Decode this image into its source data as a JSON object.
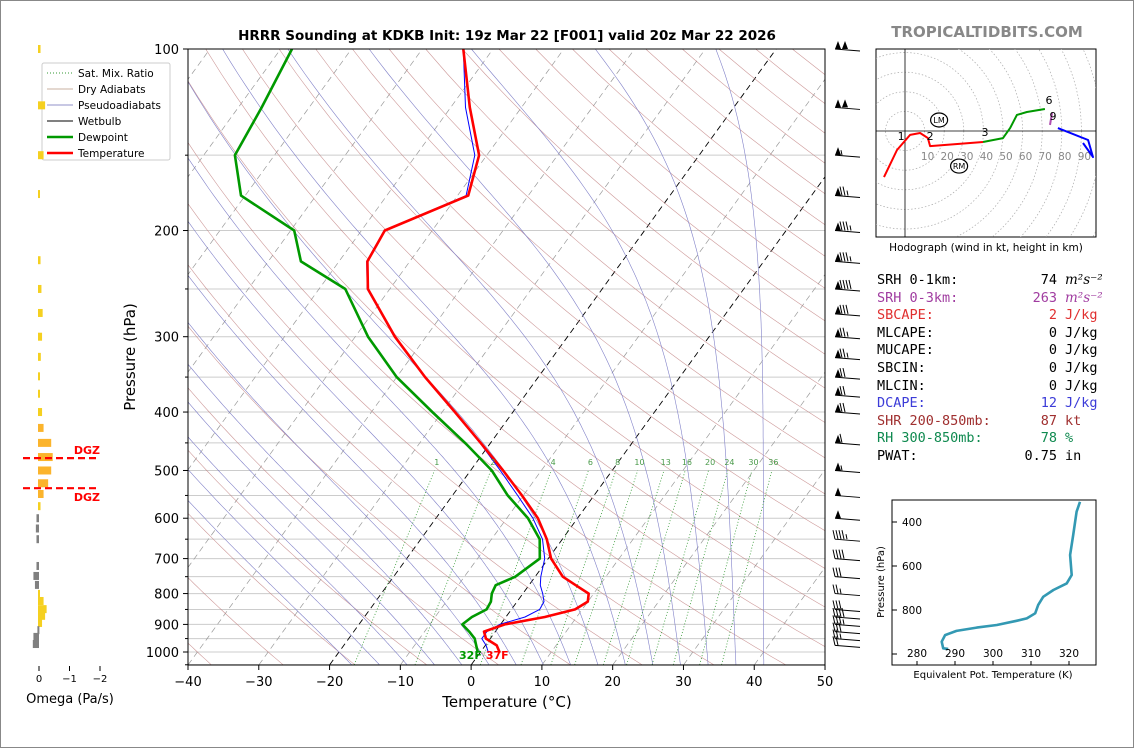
{
  "watermark": "TROPICALTIDBITS.COM",
  "colors": {
    "temperature": "#ff0000",
    "dewpoint": "#009900",
    "wetbulb": "#0000ff",
    "dry_adiabat": "#c08080",
    "pseudoadiabat": "#8080c8",
    "mixing_ratio": "#339933",
    "theta_e": "#3399b3",
    "omega_up": "#fbb42c",
    "omega_down": "#808080",
    "dgz": "#ff0000"
  },
  "stats": [
    {
      "label": "SRH 0-1km:",
      "value": "74",
      "unit": "m²s⁻²",
      "color": "#000000"
    },
    {
      "label": "SRH 0-3km:",
      "value": "263",
      "unit": "m²s⁻²",
      "color": "#a03ca0"
    },
    {
      "label": "SBCAPE:",
      "value": "2",
      "unit": "J/kg",
      "color": "#e03030"
    },
    {
      "label": "MLCAPE:",
      "value": "0",
      "unit": "J/kg",
      "color": "#000000"
    },
    {
      "label": "MUCAPE:",
      "value": "0",
      "unit": "J/kg",
      "color": "#000000"
    },
    {
      "label": "SBCIN:",
      "value": "0",
      "unit": "J/kg",
      "color": "#000000"
    },
    {
      "label": "MLCIN:",
      "value": "0",
      "unit": "J/kg",
      "color": "#000000"
    },
    {
      "label": "DCAPE:",
      "value": "12",
      "unit": "J/kg",
      "color": "#3c3cd8"
    },
    {
      "label": "SHR 200-850mb:",
      "value": "87",
      "unit": "kt",
      "color": "#a03030"
    },
    {
      "label": "RH 300-850mb:",
      "value": "78",
      "unit": "%",
      "color": "#108a50"
    },
    {
      "label": "PWAT:",
      "value": "0.75",
      "unit": "in",
      "color": "#000000"
    }
  ],
  "chart_data": [
    {
      "type": "skew-t",
      "title": "HRRR Sounding at KDKB Init: 19z Mar 22 [F001] valid 20z Mar 22 2026",
      "xlabel": "Temperature (°C)",
      "ylabel": "Pressure (hPa)",
      "xlim": [
        -40,
        50
      ],
      "ylim": [
        1050,
        100
      ],
      "yscale": "log",
      "xticks": [
        -40,
        -30,
        -20,
        -10,
        0,
        10,
        20,
        30,
        40,
        50
      ],
      "yticks": [
        100,
        200,
        300,
        400,
        500,
        600,
        700,
        800,
        900,
        1000
      ],
      "grid": true,
      "legend_position": "top-left",
      "legend": [
        "Sat. Mix. Ratio",
        "Dry Adiabats",
        "Pseudoadiabats",
        "Wetbulb",
        "Dewpoint",
        "Temperature"
      ],
      "mixing_ratio_labels": [
        1,
        2,
        4,
        6,
        8,
        10,
        13,
        16,
        20,
        24,
        30,
        36
      ],
      "surface_labels": {
        "dewpoint": "32F",
        "temperature": "37F"
      },
      "temperature": {
        "p": [
          1003,
          975,
          950,
          925,
          900,
          875,
          850,
          825,
          800,
          775,
          750,
          700,
          650,
          600,
          550,
          500,
          450,
          400,
          350,
          300,
          250,
          225,
          200,
          175,
          150,
          125,
          100
        ],
        "T": [
          2.8,
          1.6,
          -0.6,
          -1.6,
          0.6,
          5.5,
          9.0,
          10.0,
          9.3,
          6.6,
          3.9,
          0.4,
          -2.2,
          -5.6,
          -10.2,
          -15.4,
          -21.4,
          -28.2,
          -36.0,
          -44.4,
          -53.1,
          -56.0,
          -56.7,
          -48.5,
          -51.1,
          -57.3,
          -64.2
        ]
      },
      "dewpoint": {
        "p": [
          1003,
          975,
          950,
          925,
          900,
          875,
          850,
          825,
          800,
          775,
          750,
          700,
          650,
          600,
          550,
          500,
          450,
          400,
          350,
          300,
          250,
          225,
          200,
          175,
          150,
          125,
          100
        ],
        "T": [
          -0.3,
          -1.3,
          -2.2,
          -3.7,
          -5.4,
          -4.8,
          -3.5,
          -3.7,
          -4.4,
          -4.7,
          -2.8,
          -1.2,
          -3.2,
          -7.0,
          -12.2,
          -17.0,
          -23.6,
          -31.4,
          -40.0,
          -48.2,
          -56.3,
          -65.4,
          -69.5,
          -80.6,
          -85.6,
          -86.7,
          -88.4
        ]
      },
      "wetbulb": {
        "p": [
          1003,
          975,
          950,
          925,
          900,
          875,
          850,
          825,
          800,
          775,
          750,
          700,
          650,
          600,
          550,
          500,
          450,
          400,
          350,
          300,
          250,
          225,
          200,
          175,
          150,
          125,
          100
        ],
        "T": [
          1.2,
          0.1,
          -1.2,
          -1.2,
          -0.1,
          2.7,
          4.0,
          3.8,
          2.8,
          1.6,
          0.8,
          -0.5,
          -2.8,
          -6.3,
          -10.8,
          -15.8,
          -21.5,
          -28.3,
          -36.1,
          -44.5,
          -53.2,
          -56.1,
          -56.8,
          -48.8,
          -51.7,
          -57.9,
          -64.2
        ]
      },
      "wind_barbs_kt": {
        "p": [
          100,
          125,
          150,
          175,
          200,
          225,
          250,
          275,
          300,
          325,
          350,
          375,
          400,
          450,
          500,
          550,
          600,
          650,
          700,
          750,
          800,
          850,
          875,
          900,
          925,
          950,
          975
        ],
        "speed": [
          100,
          100,
          55,
          75,
          85,
          85,
          90,
          80,
          75,
          75,
          70,
          70,
          70,
          60,
          55,
          50,
          50,
          45,
          40,
          30,
          25,
          30,
          40,
          35,
          30,
          25,
          20
        ]
      }
    },
    {
      "type": "line",
      "title": "Hodograph (wind in kt, height in km)",
      "ring_labels": [
        10,
        20,
        30,
        40,
        50,
        60,
        70,
        80,
        90
      ],
      "segments": [
        {
          "color": "#ff0000",
          "u": [
            -10.7,
            -4.1,
            2.6,
            7.7,
            11.7,
            12.8,
            39.8
          ],
          "v": [
            -23.5,
            -9.7,
            -2.0,
            -1.0,
            -3.6,
            -7.7,
            -5.6
          ]
        },
        {
          "color": "#009900",
          "u": [
            39.8,
            50.0,
            53.6,
            57.1,
            62.2,
            71.4
          ],
          "v": [
            -5.6,
            -3.6,
            1.5,
            8.2,
            9.7,
            11.2
          ]
        },
        {
          "color": "#b050b0",
          "u": [
            75.0,
            74.0
          ],
          "v": [
            9.2,
            3.1
          ]
        },
        {
          "color": "#0000ff",
          "u": [
            78.0,
            93.4,
            95.9,
            90.8
          ],
          "v": [
            1.5,
            -4.6,
            -13.3,
            -6.1
          ]
        }
      ],
      "height_labels": [
        {
          "label": "1",
          "u": -2.0,
          "v": -7.7
        },
        {
          "label": "2",
          "u": 12.8,
          "v": -7.7
        },
        {
          "label": "3",
          "u": 40.8,
          "v": -5.6
        },
        {
          "label": "6",
          "u": 73.5,
          "v": 10.7
        },
        {
          "label": "9",
          "u": 75.5,
          "v": 2.6
        }
      ],
      "markers": [
        {
          "label": "LM",
          "u": 17.4,
          "v": 5.6
        },
        {
          "label": "RM",
          "u": 27.6,
          "v": -17.9
        }
      ]
    },
    {
      "type": "line",
      "xlabel": "Equivalent Pot. Temperature (K)",
      "ylabel": "Pressure (hPa)",
      "xlim": [
        273.4,
        327.1
      ],
      "ylim": [
        1050,
        300
      ],
      "xticks": [
        280,
        290,
        300,
        310,
        320
      ],
      "yticks": [
        400,
        600,
        800
      ],
      "theta_e": [
        322.9,
        322.0,
        321.1,
        320.3,
        320.7,
        319.4,
        315.9,
        313.2,
        311.9,
        311.1,
        308.9,
        306.2,
        301.0,
        295.7,
        290.4,
        287.4,
        286.5,
        286.9,
        288.2
      ],
      "p": [
        308,
        353,
        459,
        550,
        641,
        679,
        709,
        740,
        777,
        815,
        838,
        849,
        868,
        880,
        895,
        914,
        944,
        974,
        977
      ]
    },
    {
      "type": "bar",
      "xlabel": "Omega (Pa/s)",
      "xlim": [
        0.3,
        -2.2
      ],
      "xticks": [
        0,
        -1,
        -2
      ],
      "dgz_label": "DGZ",
      "dgz_p": [
        477,
        535
      ],
      "p": [
        100,
        124,
        150,
        174,
        224,
        250,
        274,
        300,
        324,
        349,
        373,
        400,
        425,
        450,
        475,
        500,
        525,
        547,
        573,
        600,
        624,
        650,
        720,
        748,
        774,
        801,
        823,
        849,
        871,
        895,
        920,
        944,
        970
      ],
      "omega": [
        -0.05,
        -0.2,
        -0.15,
        -0.03,
        -0.05,
        -0.08,
        -0.12,
        -0.1,
        -0.06,
        -0.02,
        -0.01,
        -0.1,
        -0.15,
        -0.4,
        -0.45,
        -0.4,
        -0.3,
        -0.15,
        -0.05,
        0.05,
        0.07,
        0.05,
        0.05,
        0.15,
        0.1,
        -0.02,
        -0.15,
        -0.25,
        -0.2,
        -0.1,
        0.02,
        0.15,
        0.17
      ]
    }
  ]
}
